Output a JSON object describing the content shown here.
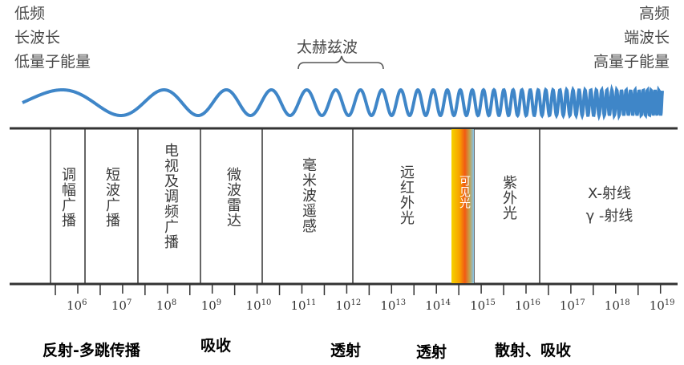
{
  "corner_left": {
    "line1": "低频",
    "line2": "长波长",
    "line3": "低量子能量"
  },
  "corner_right": {
    "line1": "高频",
    "line2": "端波长",
    "line3": "高量子能量"
  },
  "terahertz_label": "太赫兹波",
  "bands": [
    {
      "label": "调幅广播"
    },
    {
      "label": "短波广播"
    },
    {
      "label": "电视及调频广播"
    },
    {
      "label": "微波雷达"
    },
    {
      "label": "毫米波遥感"
    },
    {
      "label": "远红外光"
    },
    {
      "label": "可见光"
    },
    {
      "label": "紫外光"
    }
  ],
  "xray_band": {
    "line1": "X-射线",
    "line2": "γ -射线"
  },
  "axis": {
    "base": "10",
    "exponents": [
      "6",
      "7",
      "8",
      "9",
      "10",
      "11",
      "12",
      "13",
      "14",
      "15",
      "16",
      "17",
      "18",
      "19"
    ]
  },
  "behaviors": [
    {
      "label": "反射-多跳传播"
    },
    {
      "label": "吸收"
    },
    {
      "label": "透射"
    },
    {
      "label": "透射"
    },
    {
      "label": "散射、吸收"
    }
  ],
  "colors": {
    "wave": "#3f86c8",
    "lines": "#333333",
    "visible_gradient": [
      "#f6d200",
      "#f7a300",
      "#f25a12",
      "#86c3e8"
    ]
  }
}
